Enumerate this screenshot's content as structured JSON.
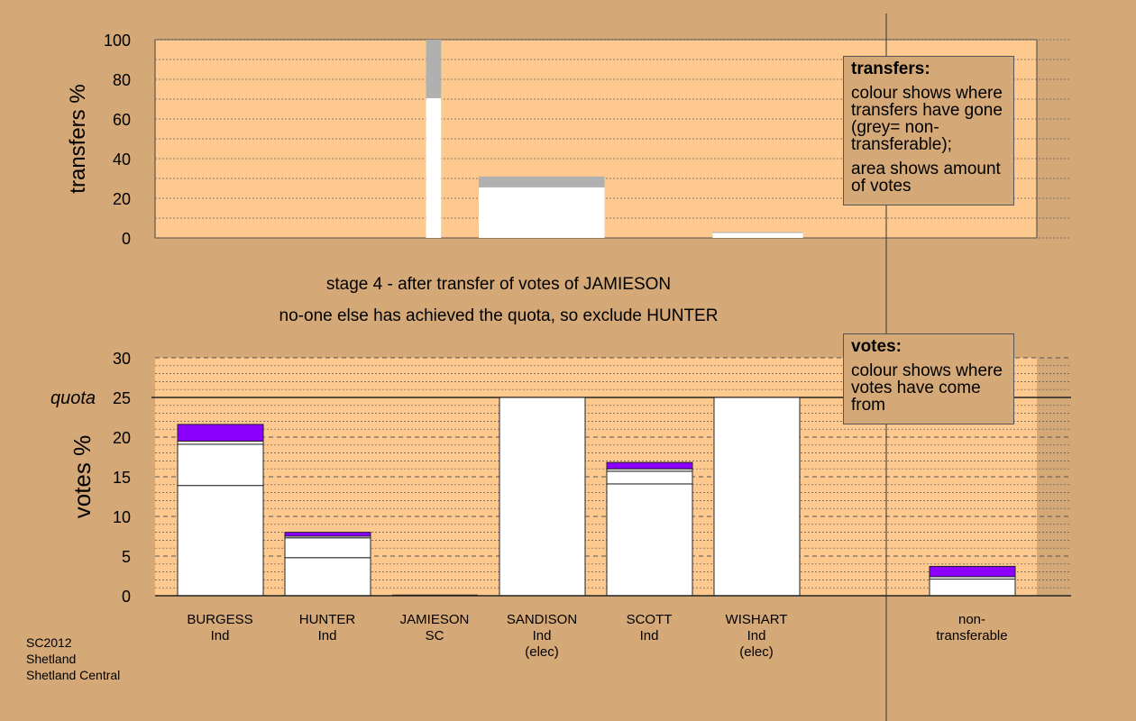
{
  "colors": {
    "background": "#d4a877",
    "plot_fill": "#fec98f",
    "bar": "#ffffff",
    "grey": "#b0b0b0",
    "purple": "#8b00ff"
  },
  "stage_line": "stage 4 - after transfer of votes of JAMIESON",
  "action_line": "no-one else has achieved the quota, so exclude HUNTER",
  "legend_transfers": {
    "title": "transfers:",
    "line1": "colour shows where transfers have gone (grey= non-transferable);",
    "line2": "area shows amount of votes"
  },
  "legend_votes": {
    "title": "votes:",
    "line1": "colour shows where votes have come from"
  },
  "footer": {
    "line1": "SC2012",
    "line2": "Shetland",
    "line3": "Shetland Central"
  },
  "candidates": [
    {
      "name": "BURGESS",
      "party": "Ind",
      "status": ""
    },
    {
      "name": "HUNTER",
      "party": "Ind",
      "status": ""
    },
    {
      "name": "JAMIESON",
      "party": "SC",
      "status": ""
    },
    {
      "name": "SANDISON",
      "party": "Ind",
      "status": "(elec)"
    },
    {
      "name": "SCOTT",
      "party": "Ind",
      "status": ""
    },
    {
      "name": "WISHART",
      "party": "Ind",
      "status": "(elec)"
    }
  ],
  "nontransferable_label": {
    "line1": "non-",
    "line2": "transferable"
  },
  "chart_data": [
    {
      "type": "bar",
      "ylabel": "transfers %",
      "ylim": [
        0,
        100
      ],
      "yticks": [
        0,
        20,
        40,
        60,
        80,
        100
      ],
      "bars": [
        {
          "x_start": 50.4,
          "x_end": 53.2,
          "white": 70.5,
          "grey": 29.5
        },
        {
          "x_start": 60.2,
          "x_end": 83.6,
          "white": 25.5,
          "grey": 5.5
        },
        {
          "x_start": 103.7,
          "x_end": 120.5,
          "white": 2.5,
          "grey": 0.5
        }
      ],
      "xlim": [
        0,
        164
      ]
    },
    {
      "type": "bar",
      "ylabel": "votes %",
      "ylim": [
        0,
        30
      ],
      "yticks": [
        0,
        5,
        10,
        15,
        20,
        25,
        30
      ],
      "quota": 25,
      "quota_label": "quota",
      "series": [
        {
          "name": "BURGESS",
          "segments": [
            {
              "v": 13.9,
              "c": "white"
            },
            {
              "v": 5.2,
              "c": "white"
            },
            {
              "v": 0.4,
              "c": "white"
            },
            {
              "v": 2.1,
              "c": "purple"
            }
          ]
        },
        {
          "name": "HUNTER",
          "segments": [
            {
              "v": 4.8,
              "c": "white"
            },
            {
              "v": 2.5,
              "c": "white"
            },
            {
              "v": 0.2,
              "c": "white"
            },
            {
              "v": 0.5,
              "c": "purple"
            }
          ]
        },
        {
          "name": "JAMIESON",
          "segments": []
        },
        {
          "name": "SANDISON",
          "segments": [
            {
              "v": 25.0,
              "c": "white"
            }
          ]
        },
        {
          "name": "SCOTT",
          "segments": [
            {
              "v": 14.1,
              "c": "white"
            },
            {
              "v": 1.6,
              "c": "white"
            },
            {
              "v": 0.3,
              "c": "white"
            },
            {
              "v": 0.8,
              "c": "purple"
            }
          ]
        },
        {
          "name": "WISHART",
          "segments": [
            {
              "v": 25.0,
              "c": "white"
            }
          ]
        },
        {
          "name": "non-transferable",
          "segments": [
            {
              "v": 2.1,
              "c": "white"
            },
            {
              "v": 0.3,
              "c": "white"
            },
            {
              "v": 1.3,
              "c": "purple"
            }
          ]
        }
      ]
    }
  ]
}
